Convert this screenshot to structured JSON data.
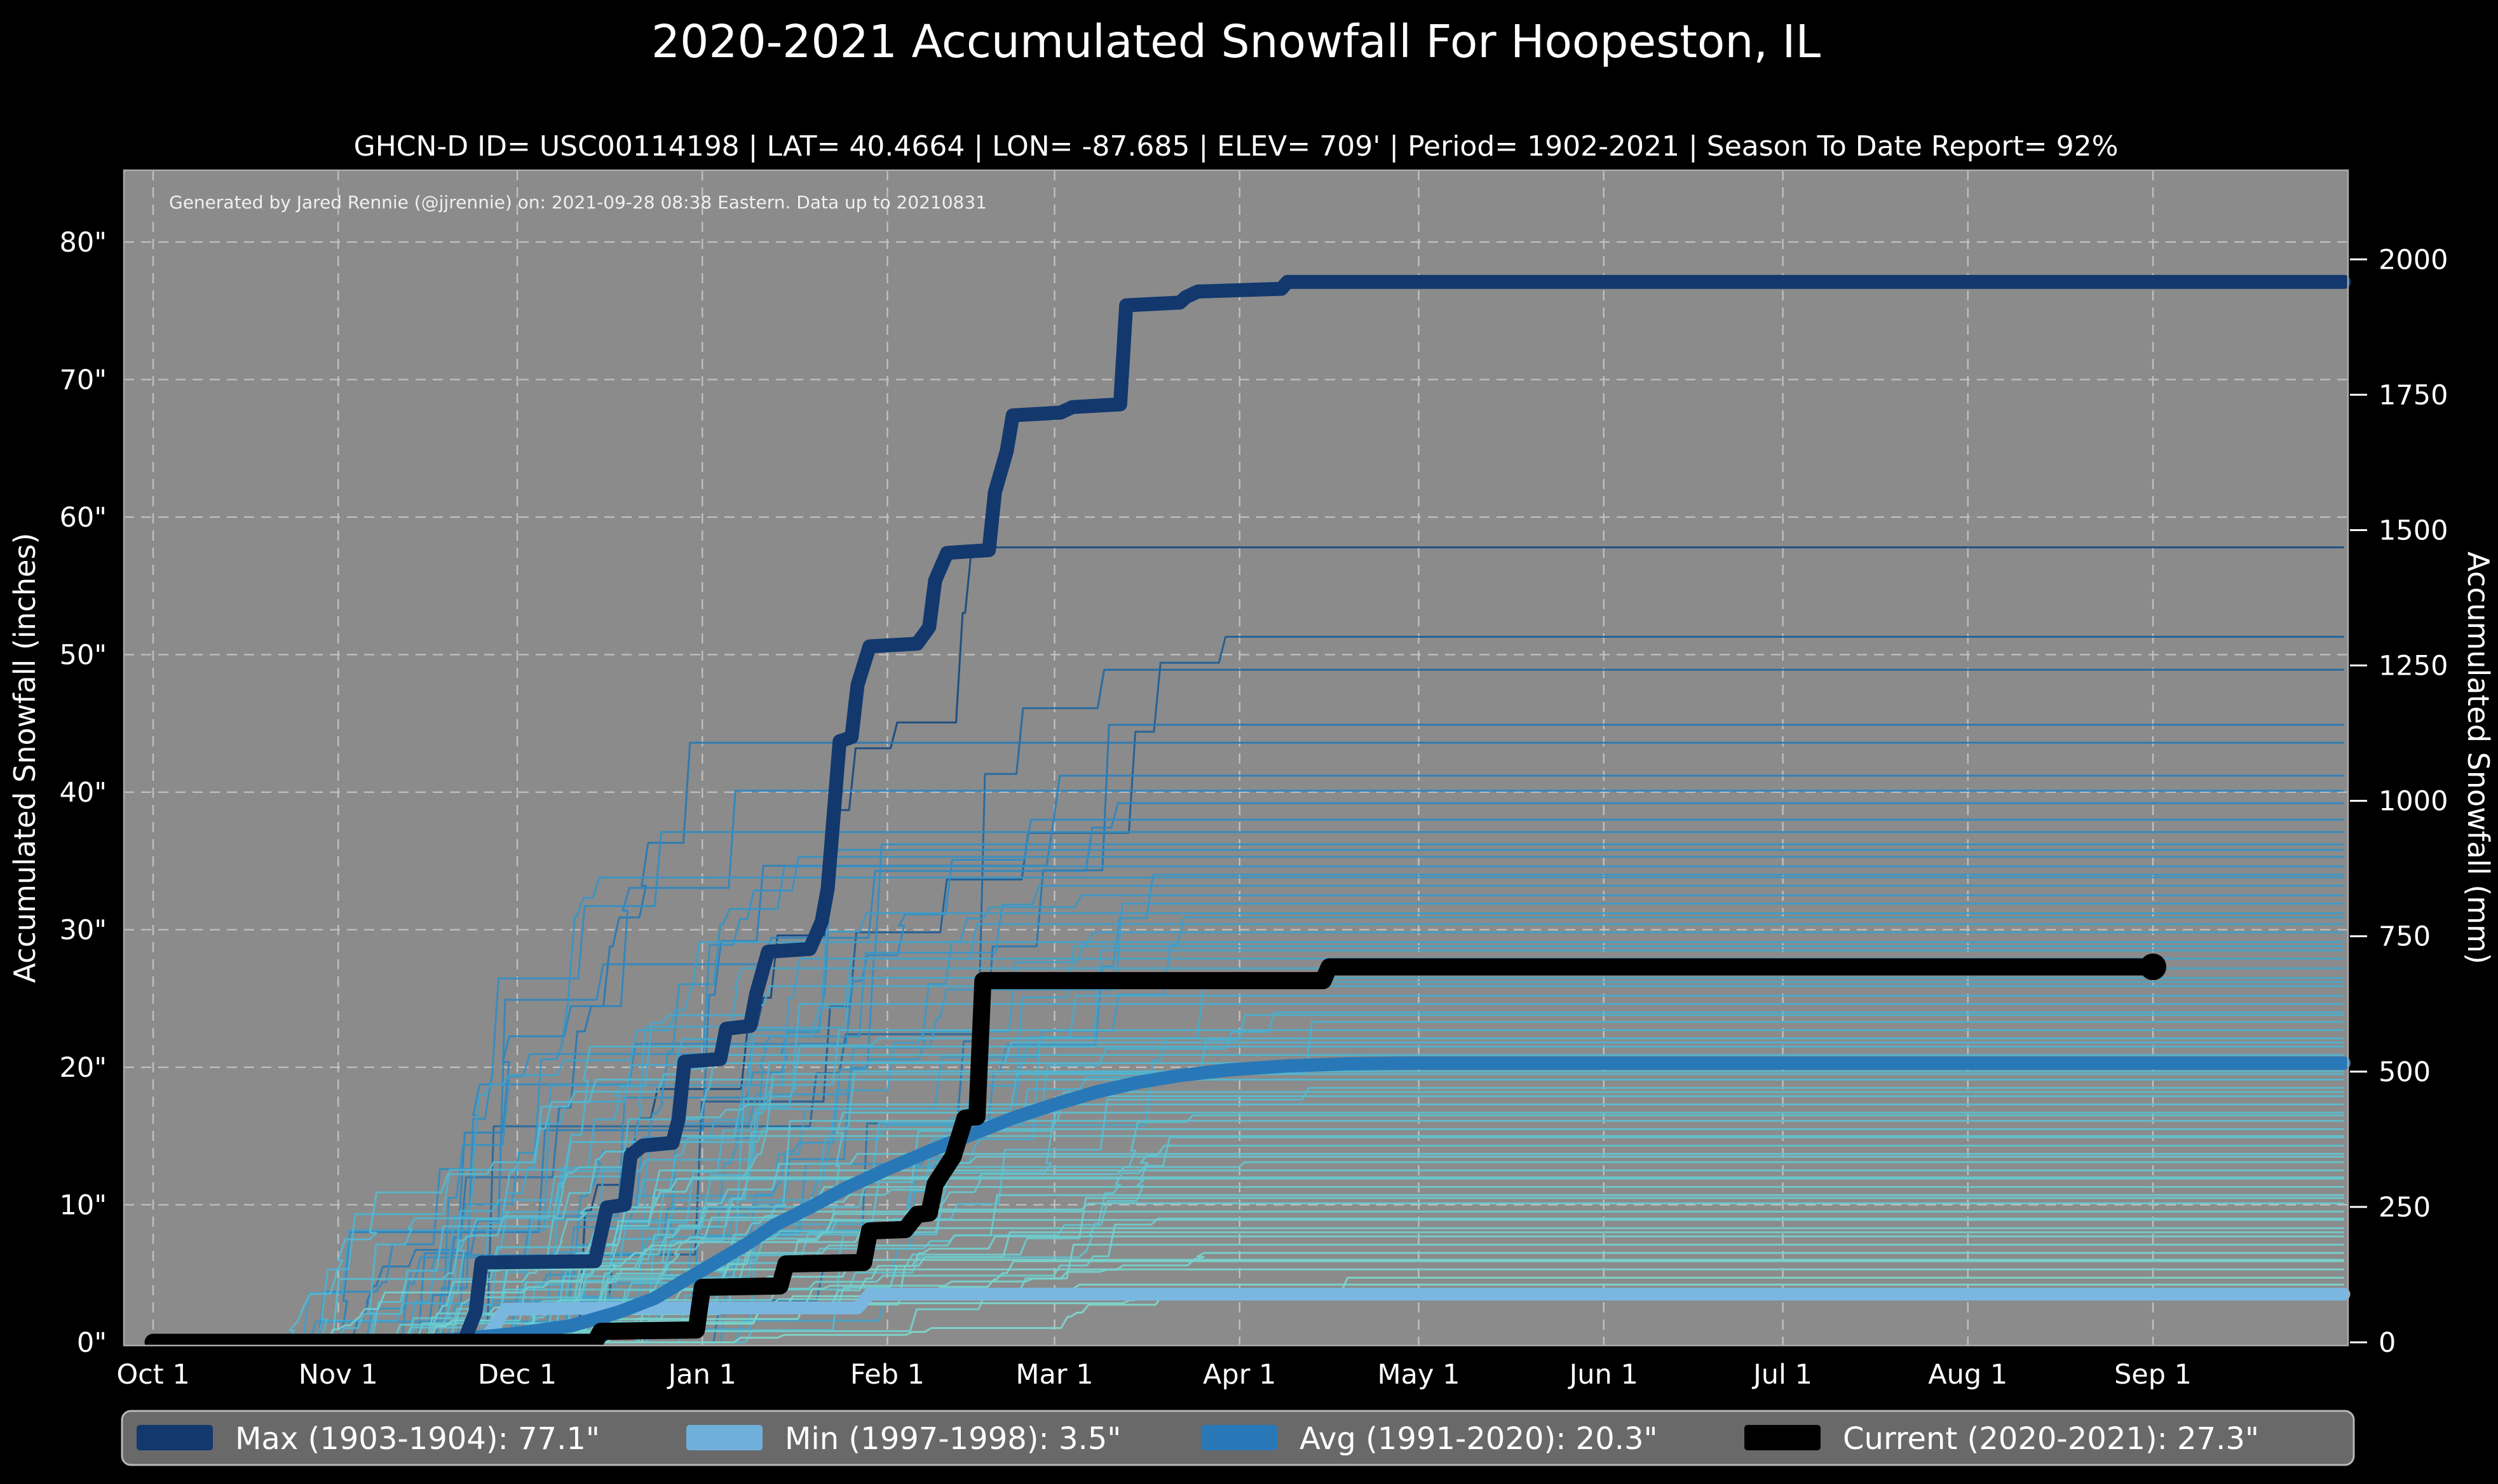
{
  "header": {
    "title": "2020-2021 Accumulated Snowfall For Hoopeston, IL",
    "subtitle": "GHCN-D ID= USC00114198 | LAT= 40.4664 | LON= -87.685 | ELEV= 709' | Period= 1902-2021 | Season To Date Report= 92%"
  },
  "legend": {
    "background": "#696969",
    "border": "#b8b8b8",
    "items": [
      {
        "name": "max",
        "label": "Max (1903-1904):  77.1\"",
        "color": "#12386e"
      },
      {
        "name": "min",
        "label": "Min (1997-1998):   3.5\"",
        "color": "#6fb0da"
      },
      {
        "name": "avg",
        "label": "Avg (1991-2020):  20.3\"",
        "color": "#2878b8"
      },
      {
        "name": "current",
        "label": "Current (2020-2021):  27.3\"",
        "color": "#000000"
      }
    ]
  },
  "chart_data": {
    "type": "line",
    "title": "2020-2021 Accumulated Snowfall For Hoopeston, IL",
    "subtitle": "GHCN-D ID= USC00114198 | LAT= 40.4664 | LON= -87.685 | ELEV= 709' | Period= 1902-2021 | Season To Date Report= 92%",
    "annotation": "Generated by Jared Rennie (@jjrennie) on: 2021-09-28 08:38 Eastern. Data up to 20210831",
    "ylabel_left": "Accumulated Snowfall (inches)",
    "ylabel_right": "Accumulated Snowfall (mm)",
    "x_unit": "days since Oct 1",
    "xlim_days": [
      -5,
      368
    ],
    "ylim_inches": [
      0,
      85.2
    ],
    "grid": true,
    "legend_position": "bottom",
    "plot_background": "#8b8b8b",
    "grid_color": "#c6c6c6",
    "x_ticks": [
      {
        "day": 0,
        "label": "Oct 1"
      },
      {
        "day": 31,
        "label": "Nov 1"
      },
      {
        "day": 61,
        "label": "Dec 1"
      },
      {
        "day": 92,
        "label": "Jan 1"
      },
      {
        "day": 123,
        "label": "Feb 1"
      },
      {
        "day": 151,
        "label": "Mar 1"
      },
      {
        "day": 182,
        "label": "Apr 1"
      },
      {
        "day": 212,
        "label": "May 1"
      },
      {
        "day": 243,
        "label": "Jun 1"
      },
      {
        "day": 273,
        "label": "Jul 1"
      },
      {
        "day": 304,
        "label": "Aug 1"
      },
      {
        "day": 335,
        "label": "Sep 1"
      }
    ],
    "y_ticks_inches": [
      {
        "v": 0,
        "label": "0\""
      },
      {
        "v": 10,
        "label": "10\""
      },
      {
        "v": 20,
        "label": "20\""
      },
      {
        "v": 30,
        "label": "30\""
      },
      {
        "v": 40,
        "label": "40\""
      },
      {
        "v": 50,
        "label": "50\""
      },
      {
        "v": 60,
        "label": "60\""
      },
      {
        "v": 70,
        "label": "70\""
      },
      {
        "v": 80,
        "label": "80\""
      }
    ],
    "y_ticks_mm": [
      {
        "mm": 0,
        "label": "0"
      },
      {
        "mm": 250,
        "label": "250"
      },
      {
        "mm": 500,
        "label": "500"
      },
      {
        "mm": 750,
        "label": "750"
      },
      {
        "mm": 1000,
        "label": "1000"
      },
      {
        "mm": 1250,
        "label": "1250"
      },
      {
        "mm": 1500,
        "label": "1500"
      },
      {
        "mm": 1750,
        "label": "1750"
      },
      {
        "mm": 2000,
        "label": "2000"
      }
    ],
    "series": [
      {
        "name": "Max (1903-1904)",
        "key": "max",
        "total_inches": 77.1,
        "color": "#12386e",
        "width": 22,
        "steps": [
          [
            0,
            0
          ],
          [
            52,
            0
          ],
          [
            54,
            2.2
          ],
          [
            55,
            5.8
          ],
          [
            74,
            5.9
          ],
          [
            76,
            9.8
          ],
          [
            79,
            10.0
          ],
          [
            80,
            13.6
          ],
          [
            82,
            14.3
          ],
          [
            87,
            14.5
          ],
          [
            88,
            16.2
          ],
          [
            89,
            20.4
          ],
          [
            95,
            20.6
          ],
          [
            96,
            22.8
          ],
          [
            100,
            23.0
          ],
          [
            101,
            25.3
          ],
          [
            103,
            28.4
          ],
          [
            110,
            28.6
          ],
          [
            112,
            30.6
          ],
          [
            113,
            33.0
          ],
          [
            115,
            43.7
          ],
          [
            117,
            44.0
          ],
          [
            118,
            47.8
          ],
          [
            120,
            50.6
          ],
          [
            128,
            50.8
          ],
          [
            130,
            52.0
          ],
          [
            131,
            55.4
          ],
          [
            133,
            57.4
          ],
          [
            140,
            57.6
          ],
          [
            141,
            61.8
          ],
          [
            143,
            64.8
          ],
          [
            144,
            67.4
          ],
          [
            152,
            67.6
          ],
          [
            154,
            68.0
          ],
          [
            162,
            68.2
          ],
          [
            163,
            75.4
          ],
          [
            172,
            75.6
          ],
          [
            173,
            76.0
          ],
          [
            175,
            76.4
          ],
          [
            182,
            76.5
          ],
          [
            189,
            76.6
          ],
          [
            190,
            77.1
          ],
          [
            367,
            77.1
          ]
        ]
      },
      {
        "name": "Min (1997-1998)",
        "key": "min",
        "total_inches": 3.5,
        "color": "#7ab7e0",
        "width": 20,
        "steps": [
          [
            0,
            0
          ],
          [
            55,
            0
          ],
          [
            57,
            1.1
          ],
          [
            59,
            2.4
          ],
          [
            77,
            2.5
          ],
          [
            118,
            2.5
          ],
          [
            120,
            3.5
          ],
          [
            367,
            3.5
          ]
        ]
      },
      {
        "name": "Avg (1991-2020)",
        "key": "avg",
        "total_inches": 20.3,
        "color": "#2878b8",
        "width": 21,
        "steps": [
          [
            35,
            0
          ],
          [
            50,
            0.2
          ],
          [
            60,
            0.6
          ],
          [
            70,
            1.2
          ],
          [
            78,
            2.2
          ],
          [
            84,
            3.2
          ],
          [
            89,
            4.5
          ],
          [
            95,
            6.0
          ],
          [
            100,
            7.3
          ],
          [
            104,
            8.5
          ],
          [
            110,
            9.8
          ],
          [
            116,
            11.2
          ],
          [
            123,
            12.6
          ],
          [
            130,
            13.9
          ],
          [
            137,
            15.1
          ],
          [
            144,
            16.3
          ],
          [
            151,
            17.3
          ],
          [
            158,
            18.2
          ],
          [
            165,
            18.9
          ],
          [
            172,
            19.4
          ],
          [
            180,
            19.8
          ],
          [
            190,
            20.1
          ],
          [
            200,
            20.25
          ],
          [
            210,
            20.3
          ],
          [
            367,
            20.3
          ]
        ]
      },
      {
        "name": "Current (2020-2021)",
        "key": "current",
        "total_inches": 27.3,
        "color": "#000000",
        "width": 27,
        "end_dot_day": 335,
        "end_dot_radius": 21,
        "steps": [
          [
            0,
            0
          ],
          [
            74,
            0
          ],
          [
            75,
            0.8
          ],
          [
            91,
            0.9
          ],
          [
            92,
            4.0
          ],
          [
            105,
            4.1
          ],
          [
            106,
            5.7
          ],
          [
            119,
            5.8
          ],
          [
            120,
            8.1
          ],
          [
            126,
            8.2
          ],
          [
            128,
            9.3
          ],
          [
            130,
            9.4
          ],
          [
            131,
            11.5
          ],
          [
            134,
            13.5
          ],
          [
            136,
            16.3
          ],
          [
            138,
            16.4
          ],
          [
            139,
            26.3
          ],
          [
            196,
            26.3
          ],
          [
            197,
            27.3
          ],
          [
            335,
            27.3
          ]
        ]
      }
    ],
    "background_seasons": {
      "description": "thin step lines, one per historical season 1902-2021, colored dark blue (high totals) to light teal (low totals)",
      "seed": 42,
      "line_width": 3,
      "color_low": "#7fd8cc",
      "color_mid": "#4fb3cf",
      "color_mid2": "#2e86c0",
      "color_high": "#17497e",
      "totals_inches": [
        57.8,
        51.3,
        48.9,
        44.9,
        43.6,
        41.2,
        40.1,
        39.2,
        38.0,
        37.1,
        36.2,
        35.8,
        35.3,
        34.6,
        34.0,
        33.8,
        33.2,
        32.5,
        31.9,
        31.2,
        30.9,
        30.4,
        29.8,
        29.1,
        28.8,
        28.5,
        27.9,
        27.2,
        26.5,
        26.2,
        25.9,
        25.2,
        24.6,
        24.0,
        23.8,
        23.3,
        22.7,
        22.1,
        21.8,
        21.5,
        20.9,
        20.3,
        19.7,
        19.5,
        19.1,
        18.5,
        18.2,
        17.9,
        17.3,
        16.7,
        16.5,
        16.1,
        15.5,
        15.0,
        14.9,
        14.3,
        13.7,
        13.5,
        13.1,
        12.5,
        12.0,
        11.9,
        11.3,
        10.7,
        10.5,
        10.1,
        9.5,
        9.0,
        8.9,
        8.3,
        8.0,
        7.7,
        7.1,
        6.5,
        6.0,
        5.9,
        5.3,
        4.7,
        4.2,
        3.8
      ]
    }
  }
}
